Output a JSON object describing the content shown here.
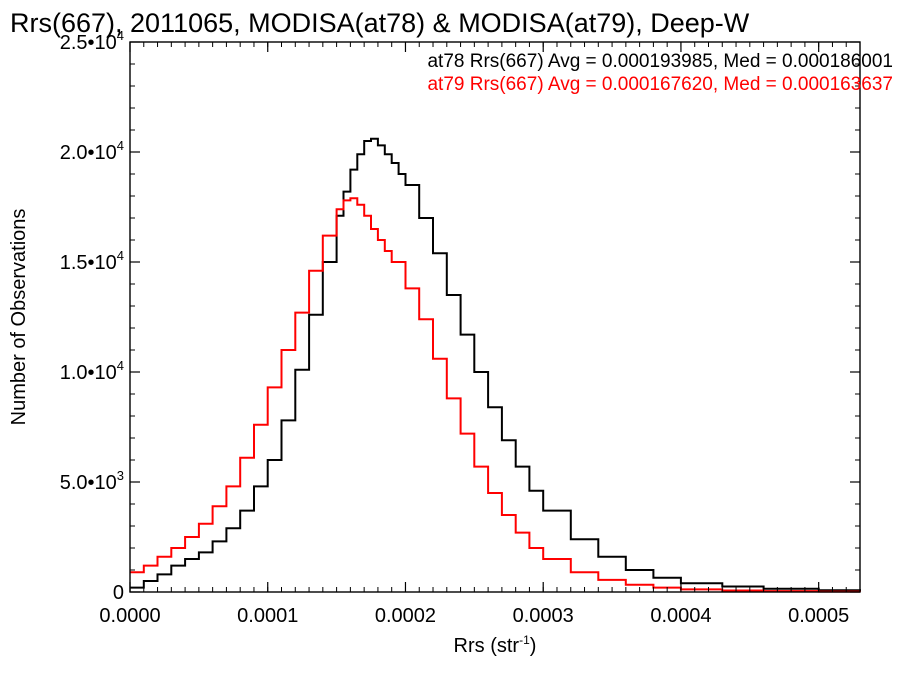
{
  "chart_data": {
    "type": "line",
    "title": "Rrs(667), 2011065, MODISA(at78) & MODISA(at79), Deep-W",
    "xlabel": "Rrs (str",
    "xlabel_sup": "-1",
    "xlabel_close": ")",
    "ylabel": "Number of Observations",
    "xlim": [
      0,
      0.00053
    ],
    "ylim": [
      0,
      25000
    ],
    "x_ticks": [
      {
        "v": 0.0,
        "label": "0.0000"
      },
      {
        "v": 0.0001,
        "label": "0.0001"
      },
      {
        "v": 0.0002,
        "label": "0.0002"
      },
      {
        "v": 0.0003,
        "label": "0.0003"
      },
      {
        "v": 0.0004,
        "label": "0.0004"
      },
      {
        "v": 0.0005,
        "label": "0.0005"
      }
    ],
    "y_ticks": [
      {
        "v": 0,
        "label": "0",
        "sup": ""
      },
      {
        "v": 5000,
        "label": "5.0•10",
        "sup": "3"
      },
      {
        "v": 10000,
        "label": "1.0•10",
        "sup": "4"
      },
      {
        "v": 15000,
        "label": "1.5•10",
        "sup": "4"
      },
      {
        "v": 20000,
        "label": "2.0•10",
        "sup": "4"
      },
      {
        "v": 25000,
        "label": "2.5•10",
        "sup": "4"
      }
    ],
    "annotations": [
      {
        "text": "at78 Rrs(667) Avg = 0.000193985, Med = 0.000186001",
        "color": "#000000"
      },
      {
        "text": "at79 Rrs(667) Avg = 0.000167620, Med = 0.000163637",
        "color": "#ff0000"
      }
    ],
    "grid": false,
    "series": [
      {
        "name": "at78",
        "color": "#000000",
        "x": [
          0.0,
          1e-05,
          2e-05,
          3e-05,
          4e-05,
          5e-05,
          6e-05,
          7e-05,
          8e-05,
          9e-05,
          0.0001,
          0.00011,
          0.00012,
          0.00013,
          0.00014,
          0.00015,
          0.000155,
          0.00016,
          0.000165,
          0.00017,
          0.000175,
          0.00018,
          0.000185,
          0.00019,
          0.000195,
          0.0002,
          0.00021,
          0.00022,
          0.00023,
          0.00024,
          0.00025,
          0.00026,
          0.00027,
          0.00028,
          0.00029,
          0.0003,
          0.00032,
          0.00034,
          0.00036,
          0.00038,
          0.0004,
          0.00043,
          0.00046,
          0.0005,
          0.00053
        ],
        "y": [
          200,
          500,
          800,
          1200,
          1500,
          1800,
          2300,
          2900,
          3700,
          4800,
          6000,
          7800,
          10100,
          12600,
          15000,
          17100,
          18200,
          19200,
          19900,
          20500,
          20600,
          20300,
          19900,
          19500,
          19000,
          18500,
          17000,
          15400,
          13500,
          11700,
          10000,
          8400,
          6900,
          5700,
          4600,
          3700,
          2400,
          1600,
          1000,
          650,
          400,
          250,
          150,
          80,
          40
        ]
      },
      {
        "name": "at79",
        "color": "#ff0000",
        "x": [
          0.0,
          1e-05,
          2e-05,
          3e-05,
          4e-05,
          5e-05,
          6e-05,
          7e-05,
          8e-05,
          9e-05,
          0.0001,
          0.00011,
          0.00012,
          0.00013,
          0.00014,
          0.00015,
          0.000155,
          0.00016,
          0.000165,
          0.00017,
          0.000175,
          0.00018,
          0.000185,
          0.00019,
          0.0002,
          0.00021,
          0.00022,
          0.00023,
          0.00024,
          0.00025,
          0.00026,
          0.00027,
          0.00028,
          0.00029,
          0.0003,
          0.00032,
          0.00034,
          0.00036,
          0.00038,
          0.0004,
          0.00043,
          0.00046,
          0.0005,
          0.00053
        ],
        "y": [
          900,
          1200,
          1600,
          2000,
          2500,
          3100,
          3900,
          4800,
          6100,
          7600,
          9300,
          11000,
          12700,
          14600,
          16200,
          17400,
          17800,
          17900,
          17600,
          17100,
          16500,
          16000,
          15500,
          15000,
          13800,
          12400,
          10600,
          8800,
          7200,
          5700,
          4500,
          3500,
          2700,
          2000,
          1500,
          900,
          550,
          330,
          200,
          120,
          70,
          40,
          20,
          10
        ]
      }
    ]
  }
}
